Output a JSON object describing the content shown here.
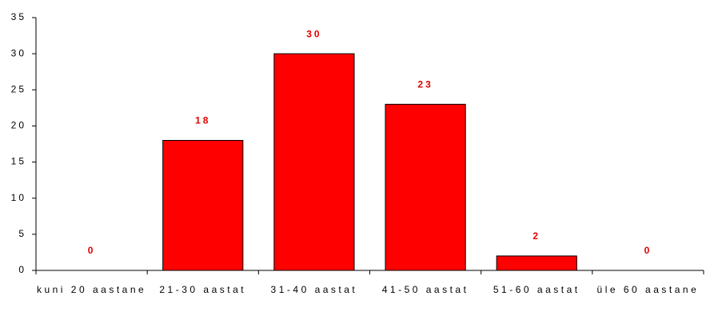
{
  "chart_data": {
    "type": "bar",
    "categories": [
      "kuni 20 aastane",
      "21-30 aastat",
      "31-40 aastat",
      "41-50 aastat",
      "51-60 aastat",
      "üle 60 aastane"
    ],
    "values": [
      0,
      18,
      30,
      23,
      2,
      0
    ],
    "color": "#ff0000",
    "label_color": "#e00000",
    "ylim": [
      0,
      35
    ],
    "yticks": [
      0,
      5,
      10,
      15,
      20,
      25,
      30,
      35
    ],
    "grid": false
  }
}
